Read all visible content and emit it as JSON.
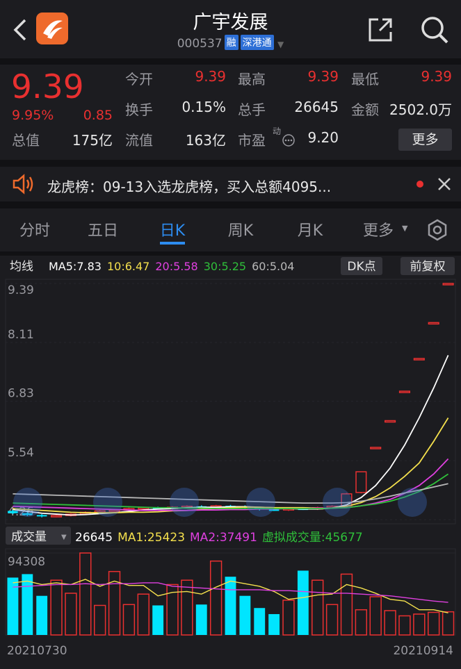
{
  "header": {
    "title": "广宇发展",
    "code": "000537",
    "badges": [
      "融",
      "深港通"
    ]
  },
  "quote": {
    "price": "9.39",
    "change_pct": "9.95%",
    "change": "0.85",
    "pe_note": "动",
    "more": "更多",
    "stats": [
      {
        "label": "今开",
        "value": "9.39",
        "color": "#e93030"
      },
      {
        "label": "最高",
        "value": "9.39",
        "color": "#e93030"
      },
      {
        "label": "最低",
        "value": "9.39",
        "color": "#e93030"
      },
      {
        "label": "换手",
        "value": "0.15%",
        "color": "#e8e8e8"
      },
      {
        "label": "总手",
        "value": "26645",
        "color": "#e8e8e8"
      },
      {
        "label": "金额",
        "value": "2502.0万",
        "color": "#e8e8e8"
      },
      {
        "label": "总值",
        "value": "175亿",
        "color": "#e8e8e8"
      },
      {
        "label": "流值",
        "value": "163亿",
        "color": "#e8e8e8"
      },
      {
        "label": "市盈",
        "value": "9.20",
        "color": "#e8e8e8"
      }
    ]
  },
  "notice": {
    "text": "龙虎榜：09-13入选龙虎榜，买入总额4095..."
  },
  "tabs": [
    "分时",
    "五日",
    "日K",
    "周K",
    "月K",
    "更多"
  ],
  "active_tab": 2,
  "kline": {
    "ma_label": "均线",
    "buttons": [
      "DK点",
      "前复权"
    ],
    "ma": [
      {
        "name": "MA5:7.83",
        "color": "#ffffff",
        "values": [
          4.48,
          4.44,
          4.4,
          4.38,
          4.36,
          4.37,
          4.39,
          4.41,
          4.44,
          4.47,
          4.49,
          4.5,
          4.52,
          4.53,
          4.53,
          4.54,
          4.54,
          4.53,
          4.52,
          4.5,
          4.49,
          4.49,
          4.51,
          4.58,
          4.74,
          5.0,
          5.38,
          5.88,
          6.47,
          7.12,
          7.83
        ]
      },
      {
        "name": "10:6.47",
        "color": "#f4e04d",
        "values": [
          4.5,
          4.48,
          4.46,
          4.44,
          4.42,
          4.41,
          4.41,
          4.41,
          4.42,
          4.42,
          4.43,
          4.45,
          4.46,
          4.48,
          4.5,
          4.52,
          4.53,
          4.53,
          4.52,
          4.52,
          4.52,
          4.51,
          4.51,
          4.55,
          4.63,
          4.76,
          4.95,
          5.2,
          5.49,
          5.96,
          6.47
        ]
      },
      {
        "name": "20:5.58",
        "color": "#e040e0",
        "values": [
          4.55,
          4.54,
          4.53,
          4.52,
          4.51,
          4.5,
          4.49,
          4.48,
          4.47,
          4.46,
          4.46,
          4.46,
          4.46,
          4.47,
          4.47,
          4.48,
          4.48,
          4.49,
          4.49,
          4.5,
          4.5,
          4.51,
          4.51,
          4.52,
          4.56,
          4.62,
          4.7,
          4.83,
          5.0,
          5.25,
          5.58
        ]
      },
      {
        "name": "30:5.25",
        "color": "#2fbf3a",
        "values": [
          4.62,
          4.61,
          4.6,
          4.59,
          4.58,
          4.57,
          4.56,
          4.55,
          4.54,
          4.53,
          4.52,
          4.52,
          4.51,
          4.51,
          4.5,
          4.5,
          4.5,
          4.5,
          4.5,
          4.5,
          4.5,
          4.5,
          4.51,
          4.52,
          4.56,
          4.6,
          4.66,
          4.75,
          4.87,
          5.04,
          5.25
        ]
      },
      {
        "name": "60:5.04",
        "color": "#b8b8b8",
        "values": [
          4.82,
          4.81,
          4.8,
          4.79,
          4.78,
          4.77,
          4.76,
          4.75,
          4.74,
          4.73,
          4.72,
          4.71,
          4.7,
          4.69,
          4.68,
          4.67,
          4.66,
          4.65,
          4.64,
          4.63,
          4.62,
          4.62,
          4.62,
          4.63,
          4.66,
          4.71,
          4.77,
          4.84,
          4.9,
          4.97,
          5.04
        ]
      }
    ],
    "ylim": [
      4.26,
      9.39
    ],
    "yticks": [
      9.39,
      8.11,
      6.83,
      5.54,
      4.26
    ],
    "open": [
      4.45,
      4.4,
      4.36,
      4.33,
      4.35,
      4.38,
      4.44,
      4.45,
      4.47,
      4.5,
      4.52,
      4.5,
      4.53,
      4.55,
      4.52,
      4.56,
      4.55,
      4.52,
      4.48,
      4.47,
      4.5,
      4.49,
      4.52,
      4.56,
      4.85,
      5.83,
      6.41,
      7.05,
      7.76,
      8.54,
      9.39
    ],
    "close": [
      4.4,
      4.36,
      4.33,
      4.35,
      4.38,
      4.42,
      4.45,
      4.47,
      4.5,
      4.52,
      4.5,
      4.53,
      4.55,
      4.52,
      4.56,
      4.55,
      4.52,
      4.48,
      4.47,
      4.5,
      4.49,
      4.52,
      4.55,
      4.82,
      5.3,
      5.83,
      6.41,
      7.05,
      7.76,
      8.54,
      9.39
    ],
    "high": [
      4.47,
      4.42,
      4.38,
      4.37,
      4.4,
      4.44,
      4.47,
      4.49,
      4.52,
      4.54,
      4.54,
      4.55,
      4.57,
      4.57,
      4.58,
      4.58,
      4.57,
      4.54,
      4.5,
      4.52,
      4.52,
      4.54,
      4.57,
      4.84,
      5.3,
      5.83,
      6.41,
      7.05,
      7.76,
      8.54,
      9.39
    ],
    "low": [
      4.38,
      4.34,
      4.31,
      4.31,
      4.33,
      4.36,
      4.42,
      4.43,
      4.45,
      4.48,
      4.48,
      4.48,
      4.51,
      4.5,
      4.5,
      4.53,
      4.5,
      4.46,
      4.45,
      4.45,
      4.47,
      4.47,
      4.5,
      4.54,
      4.83,
      5.83,
      6.41,
      7.05,
      7.76,
      8.54,
      9.39
    ],
    "up_color": "#e93030",
    "down_color": "#00e5ff"
  },
  "volume": {
    "label": "成交量",
    "legend": [
      {
        "text": "26645",
        "color": "#ffffff"
      },
      {
        "text": "MA1:25423",
        "color": "#f4e04d"
      },
      {
        "text": "MA2:37491",
        "color": "#e040e0"
      },
      {
        "text": "虚拟成交量:45677",
        "color": "#2fbf3a"
      }
    ],
    "ylim": [
      0,
      94308
    ],
    "yticks": [
      94308
    ],
    "values": [
      66000,
      70000,
      45000,
      63000,
      48000,
      94308,
      34000,
      73000,
      35000,
      47000,
      34000,
      58000,
      63000,
      35000,
      85000,
      67000,
      45000,
      31000,
      24000,
      40000,
      74000,
      63000,
      35000,
      70000,
      29000,
      44000,
      28000,
      22000,
      24000,
      26000,
      26645
    ],
    "ma": [
      {
        "color": "#f4e04d",
        "values": [
          60000,
          62000,
          58000,
          60000,
          58000,
          64000,
          56000,
          62000,
          57000,
          57000,
          45000,
          49000,
          50000,
          47000,
          55000,
          62000,
          59000,
          56000,
          50000,
          41000,
          43000,
          46000,
          47000,
          58000,
          54000,
          48000,
          41000,
          39000,
          29000,
          29000,
          25423
        ]
      },
      {
        "color": "#e040e0",
        "values": [
          55000,
          56000,
          57000,
          58000,
          58000,
          59000,
          58000,
          59000,
          59000,
          60000,
          60000,
          56000,
          55000,
          54000,
          53000,
          52000,
          52000,
          52000,
          51000,
          51000,
          50000,
          49000,
          48000,
          48000,
          47000,
          46000,
          45000,
          43000,
          41000,
          39000,
          37491
        ]
      }
    ]
  },
  "dates": [
    "20210730",
    "20210914"
  ]
}
